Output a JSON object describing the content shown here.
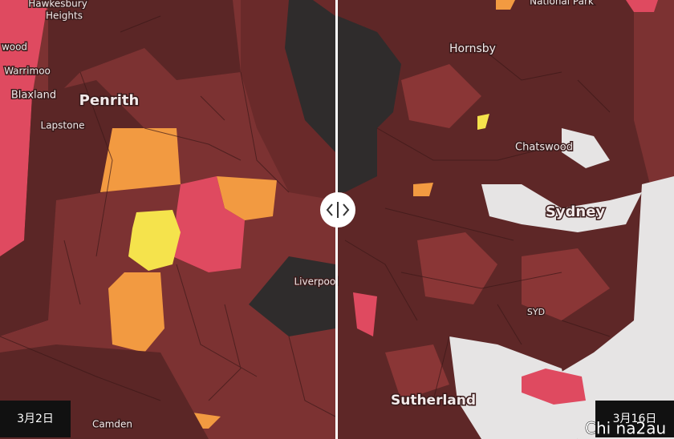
{
  "left_panel": {
    "labels": [
      "Hawkesbury",
      "Heights",
      "wood",
      "Warrimoo",
      "Blaxland",
      "Penrith",
      "Lapstone",
      "Liverpool",
      "Camden"
    ],
    "date": "3月2日"
  },
  "right_panel": {
    "labels": [
      "National Park",
      "Hornsby",
      "Chatswood",
      "Sydney",
      "SYD",
      "Sutherland"
    ],
    "date": "3月16日"
  },
  "watermark": "Chi na2au"
}
